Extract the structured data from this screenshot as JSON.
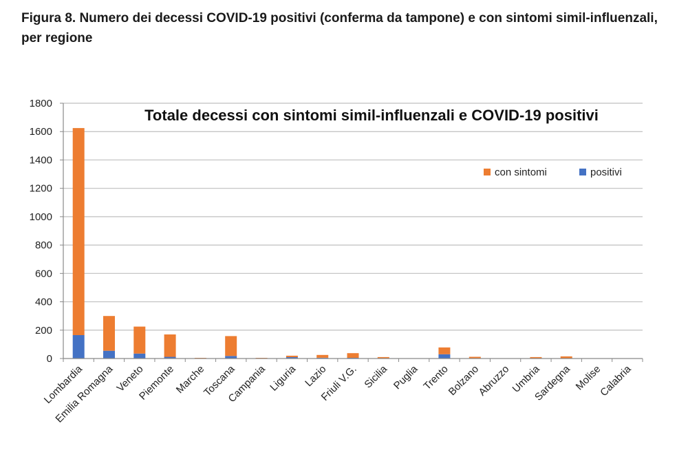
{
  "figure": {
    "caption": "Figura 8. Numero dei decessi COVID-19 positivi (conferma da tampone) e con sintomi simil-influenzali, per regione"
  },
  "chart_data": {
    "type": "bar",
    "stacked": true,
    "title": "Totale decessi con sintomi simil-influenzali e COVID-19 positivi",
    "xlabel": "",
    "ylabel": "",
    "ylim": [
      0,
      1800
    ],
    "yticks": [
      0,
      200,
      400,
      600,
      800,
      1000,
      1200,
      1400,
      1600,
      1800
    ],
    "grid": true,
    "legend_position": "top-right",
    "categories": [
      "Lombardia",
      "Emilia Romagna",
      "Veneto",
      "Piemonte",
      "Marche",
      "Toscana",
      "Campania",
      "Liguria",
      "Lazio",
      "Friuli V.G.",
      "Sicilia",
      "Puglia",
      "Trento",
      "Bolzano",
      "Abruzzo",
      "Umbria",
      "Sardegna",
      "Molise",
      "Calabria"
    ],
    "series": [
      {
        "name": "positivi",
        "color": "#4472C4",
        "values": [
          165,
          55,
          35,
          12,
          2,
          18,
          2,
          10,
          5,
          5,
          2,
          0,
          30,
          2,
          0,
          2,
          2,
          0,
          0
        ]
      },
      {
        "name": "con sintomi",
        "color": "#ED7D31",
        "values": [
          1460,
          245,
          190,
          158,
          3,
          140,
          3,
          10,
          20,
          33,
          8,
          0,
          48,
          10,
          0,
          8,
          13,
          2,
          0
        ]
      }
    ]
  }
}
